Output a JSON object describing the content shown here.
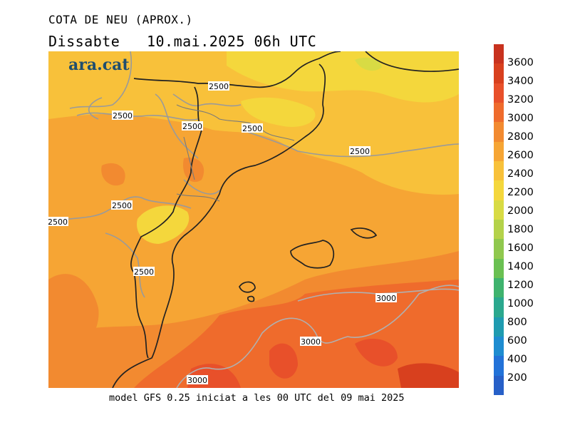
{
  "header": {
    "title": "COTA DE NEU (APROX.)",
    "subtitle": "Dissabte   10.mai.2025 06h UTC"
  },
  "footer": "model GFS 0.25 iniciat a les 00 UTC del 09 mai 2025",
  "logo": "ara.cat",
  "colorbar": {
    "labels": [
      "3600",
      "3400",
      "3200",
      "3000",
      "2800",
      "2600",
      "2400",
      "2200",
      "2000",
      "1800",
      "1600",
      "1400",
      "1200",
      "1000",
      "800",
      "600",
      "400",
      "200"
    ],
    "colors": [
      "#c8321e",
      "#d8401e",
      "#e8502a",
      "#ef6b2c",
      "#f28a30",
      "#f6a534",
      "#f8c13a",
      "#f4d73c",
      "#d8db44",
      "#b4d24a",
      "#90c84e",
      "#6ac052",
      "#3fb36e",
      "#2ba88e",
      "#1f9bb0",
      "#1e8cd0",
      "#2272d8",
      "#2760c8"
    ]
  },
  "map": {
    "contour_labels": [
      "2500",
      "2500",
      "2500",
      "2500",
      "2500",
      "2500",
      "2500",
      "2500",
      "3000",
      "3000",
      "3000"
    ]
  }
}
